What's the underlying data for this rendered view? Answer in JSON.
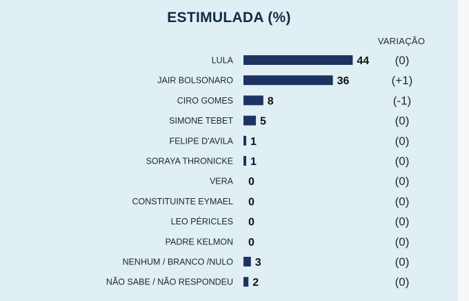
{
  "chart_data": {
    "type": "bar",
    "orientation": "horizontal",
    "title": "ESTIMULADA (%)",
    "variation_header": "VARIAÇÃO",
    "categories": [
      "LULA",
      "JAIR BOLSONARO",
      "CIRO GOMES",
      "SIMONE TEBET",
      "FELIPE D'AVILA",
      "SORAYA THRONICKE",
      "VERA",
      "CONSTITUINTE EYMAEL",
      "LEO PÉRICLES",
      "PADRE KELMON",
      "NENHUM / BRANCO /NULO",
      "NÃO SABE / NÃO RESPONDEU"
    ],
    "values": [
      44,
      36,
      8,
      5,
      1,
      1,
      0,
      0,
      0,
      0,
      3,
      2
    ],
    "variation": [
      "(0)",
      "(+1)",
      "(-1)",
      "(0)",
      "(0)",
      "(0)",
      "(0)",
      "(0)",
      "(0)",
      "(0)",
      "(0)",
      "(0)"
    ],
    "bar_color": "#1d3461",
    "background_color": "#dfeff4",
    "grid": false,
    "legend": "none"
  }
}
